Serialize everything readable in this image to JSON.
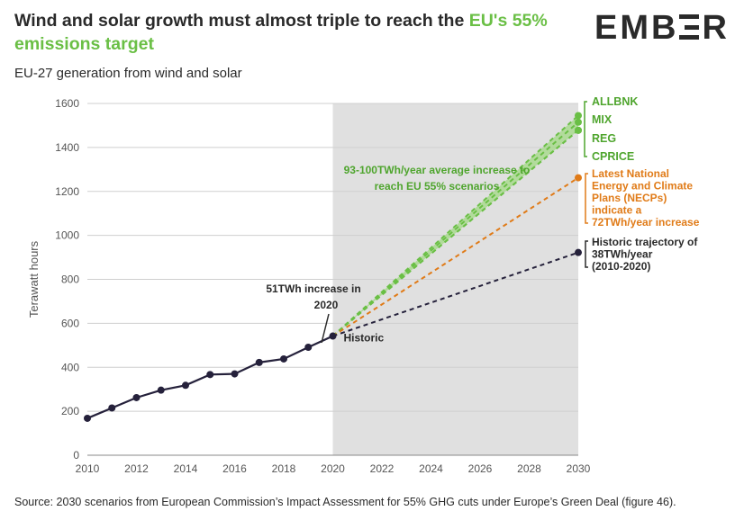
{
  "header": {
    "title_main": "Wind and solar growth must almost triple to reach the ",
    "title_accent": "EU's 55% emissions target",
    "logo": "EMBER",
    "subtitle": "EU-27 generation from wind and solar"
  },
  "footer": {
    "source": "Source: 2030 scenarios from European Commission’s Impact Assessment for 55% GHG cuts under Europe’s Green Deal (figure 46)."
  },
  "colors": {
    "historic": "#25213b",
    "scenarios": "#6abf45",
    "scenario_band": "#a9d98f",
    "necp": "#e07b18",
    "projection_shade": "#e0e0e0",
    "text": "#2a2a2a"
  },
  "chart_data": {
    "type": "line",
    "title": "Wind and solar growth must almost triple to reach the EU's 55% emissions target",
    "subtitle": "EU-27 generation from wind and solar",
    "xlabel": "",
    "ylabel": "Terawatt hours",
    "xlim": [
      2010,
      2030
    ],
    "ylim": [
      0,
      1600
    ],
    "x_ticks": [
      2010,
      2012,
      2014,
      2016,
      2018,
      2020,
      2022,
      2024,
      2026,
      2028,
      2030
    ],
    "y_ticks": [
      0,
      200,
      400,
      600,
      800,
      1000,
      1200,
      1400,
      1600
    ],
    "grid": "horizontal",
    "shaded_region": {
      "x_from": 2020,
      "x_to": 2030,
      "meaning": "projection period"
    },
    "historic": {
      "name": "Historic",
      "x": [
        2010,
        2011,
        2012,
        2013,
        2014,
        2015,
        2016,
        2017,
        2018,
        2019,
        2020
      ],
      "y": [
        168,
        215,
        262,
        296,
        318,
        367,
        370,
        422,
        438,
        491,
        542
      ]
    },
    "projections": [
      {
        "name": "ALLBNK",
        "group": "scenario",
        "from": [
          2020,
          542
        ],
        "to": [
          2030,
          1545
        ]
      },
      {
        "name": "MIX",
        "group": "scenario",
        "from": [
          2020,
          542
        ],
        "to": [
          2030,
          1515
        ]
      },
      {
        "name": "REG",
        "group": "scenario",
        "from": [
          2020,
          542
        ],
        "to": [
          2030,
          1478
        ]
      },
      {
        "name": "CPRICE",
        "group": "scenario",
        "from": [
          2020,
          542
        ],
        "to": [
          2030,
          1478
        ]
      },
      {
        "name": "Latest National Energy and Climate Plans (NECPs) indicate a 72TWh/year increase",
        "group": "necp",
        "from": [
          2020,
          542
        ],
        "to": [
          2030,
          1262
        ]
      },
      {
        "name": "Historic trajectory of 38TWh/year (2010-2020)",
        "group": "historic",
        "from": [
          2020,
          542
        ],
        "to": [
          2030,
          922
        ]
      }
    ],
    "annotations": {
      "band_label_line1": "93-100TWh/year average increase to",
      "band_label_line2": "reach EU 55% scenarios",
      "increase_label_line1": "51TWh increase in",
      "increase_label_line2": "2020",
      "historic_point_label": "Historic",
      "necp_label_lines": [
        "Latest National",
        "Energy and Climate",
        "Plans (NECPs)",
        "indicate a",
        "72TWh/year increase"
      ],
      "trajectory_label_lines": [
        "Historic trajectory of",
        "38TWh/year",
        "(2010-2020)"
      ],
      "scenario_labels": [
        "ALLBNK",
        "MIX",
        "REG",
        "CPRICE"
      ]
    }
  }
}
